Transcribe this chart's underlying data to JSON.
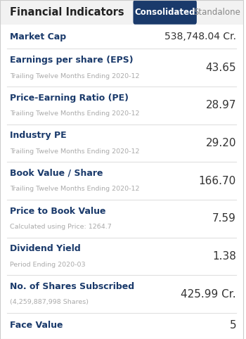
{
  "title": "Financial Indicators",
  "tab_consolidated": "Consolidated",
  "tab_standalone": "Standalone",
  "bg_color": "#ffffff",
  "header_bg": "#f2f2f2",
  "blue_color": "#1a3a6b",
  "tab_active_bg": "#1a3a6b",
  "tab_active_fg": "#ffffff",
  "tab_inactive_fg": "#888888",
  "subtitle_color": "#aaaaaa",
  "value_color": "#333333",
  "divider_color": "#e0e0e0",
  "rows": [
    {
      "label": "Market Cap",
      "subtitle": "",
      "value": "538,748.04 Cr.",
      "value_size": 10
    },
    {
      "label": "Earnings per share (EPS)",
      "subtitle": "Trailing Twelve Months Ending 2020-12",
      "value": "43.65",
      "value_size": 11
    },
    {
      "label": "Price-Earning Ratio (PE)",
      "subtitle": "Trailing Twelve Months Ending 2020-12",
      "value": "28.97",
      "value_size": 11
    },
    {
      "label": "Industry PE",
      "subtitle": "Trailing Twelve Months Ending 2020-12",
      "value": "29.20",
      "value_size": 11
    },
    {
      "label": "Book Value / Share",
      "subtitle": "Trailing Twelve Months Ending 2020-12",
      "value": "166.70",
      "value_size": 11
    },
    {
      "label": "Price to Book Value",
      "subtitle": "Calculated using Price: 1264.7",
      "value": "7.59",
      "value_size": 11
    },
    {
      "label": "Dividend Yield",
      "subtitle": "Period Ending 2020-03",
      "value": "1.38",
      "value_size": 11
    },
    {
      "label": "No. of Shares Subscribed",
      "subtitle": "(4,259,887,998 Shares)",
      "value": "425.99 Cr.",
      "value_size": 11
    },
    {
      "label": "Face Value",
      "subtitle": "",
      "value": "5",
      "value_size": 11
    }
  ]
}
